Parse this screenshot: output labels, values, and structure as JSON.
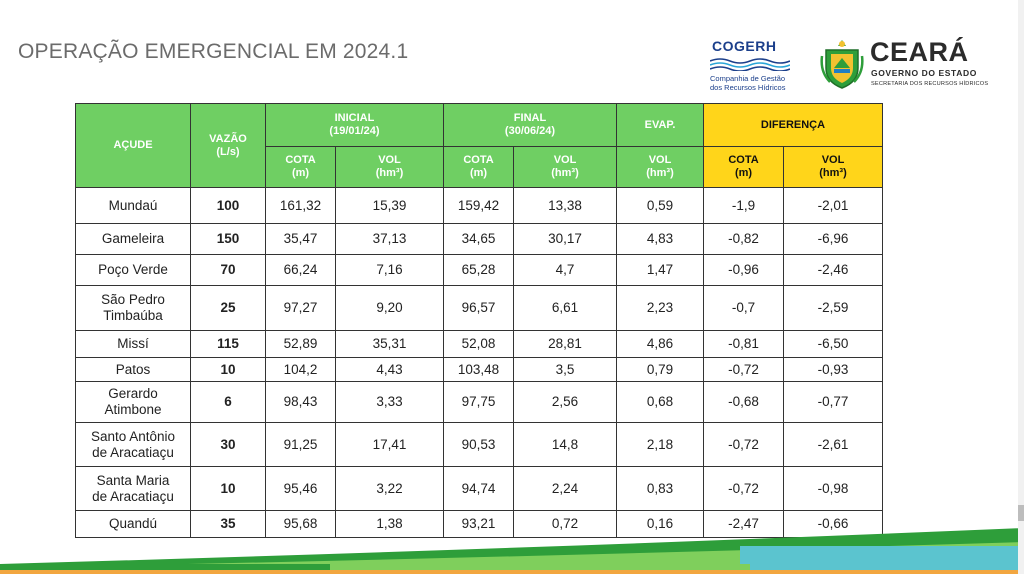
{
  "slide": {
    "title": "OPERAÇÃO EMERGENCIAL EM 2024.1"
  },
  "logos": {
    "cogerh": {
      "name": "COGERH",
      "subtitle_line1": "Companhia de Gestão",
      "subtitle_line2": "dos Recursos Hídricos"
    },
    "ceara": {
      "name": "CEARÁ",
      "gov": "GOVERNO DO ESTADO",
      "secretaria": "SECRETARIA DOS RECURSOS HÍDRICOS"
    }
  },
  "table": {
    "headers": {
      "acude": "AÇUDE",
      "vazao": "VAZÃO",
      "vazao_unit": "(L/s)",
      "inicial": "INICIAL",
      "inicial_date": "(19/01/24)",
      "final": "FINAL",
      "final_date": "(30/06/24)",
      "evap": "EVAP.",
      "diferenca": "DIFERENÇA",
      "cota": "COTA",
      "cota_unit": "(m)",
      "vol": "VOL",
      "vol_unit": "(hm³)"
    },
    "rows": [
      {
        "acude": [
          "Mundaú"
        ],
        "vazao": "100",
        "ini_cota": "161,32",
        "ini_vol": "15,39",
        "fin_cota": "159,42",
        "fin_vol": "13,38",
        "evap_vol": "0,59",
        "dif_cota": "-1,9",
        "dif_vol": "-2,01"
      },
      {
        "acude": [
          "Gameleira"
        ],
        "vazao": "150",
        "ini_cota": "35,47",
        "ini_vol": "37,13",
        "fin_cota": "34,65",
        "fin_vol": "30,17",
        "evap_vol": "4,83",
        "dif_cota": "-0,82",
        "dif_vol": "-6,96"
      },
      {
        "acude": [
          "Poço Verde"
        ],
        "vazao": "70",
        "ini_cota": "66,24",
        "ini_vol": "7,16",
        "fin_cota": "65,28",
        "fin_vol": "4,7",
        "evap_vol": "1,47",
        "dif_cota": "-0,96",
        "dif_vol": "-2,46"
      },
      {
        "acude": [
          "São Pedro",
          "Timbaúba"
        ],
        "vazao": "25",
        "ini_cota": "97,27",
        "ini_vol": "9,20",
        "fin_cota": "96,57",
        "fin_vol": "6,61",
        "evap_vol": "2,23",
        "dif_cota": "-0,7",
        "dif_vol": "-2,59"
      },
      {
        "acude": [
          "Missí"
        ],
        "vazao": "115",
        "ini_cota": "52,89",
        "ini_vol": "35,31",
        "fin_cota": "52,08",
        "fin_vol": "28,81",
        "evap_vol": "4,86",
        "dif_cota": "-0,81",
        "dif_vol": "-6,50"
      },
      {
        "acude": [
          "Patos"
        ],
        "vazao": "10",
        "ini_cota": "104,2",
        "ini_vol": "4,43",
        "fin_cota": "103,48",
        "fin_vol": "3,5",
        "evap_vol": "0,79",
        "dif_cota": "-0,72",
        "dif_vol": "-0,93"
      },
      {
        "acude": [
          "Gerardo",
          "Atimbone"
        ],
        "vazao": "6",
        "ini_cota": "98,43",
        "ini_vol": "3,33",
        "fin_cota": "97,75",
        "fin_vol": "2,56",
        "evap_vol": "0,68",
        "dif_cota": "-0,68",
        "dif_vol": "-0,77"
      },
      {
        "acude": [
          "Santo Antônio",
          "de Aracatiaçu"
        ],
        "vazao": "30",
        "ini_cota": "91,25",
        "ini_vol": "17,41",
        "fin_cota": "90,53",
        "fin_vol": "14,8",
        "evap_vol": "2,18",
        "dif_cota": "-0,72",
        "dif_vol": "-2,61"
      },
      {
        "acude": [
          "Santa Maria",
          "de Aracatiaçu"
        ],
        "vazao": "10",
        "ini_cota": "95,46",
        "ini_vol": "3,22",
        "fin_cota": "94,74",
        "fin_vol": "2,24",
        "evap_vol": "0,83",
        "dif_cota": "-0,72",
        "dif_vol": "-0,98"
      },
      {
        "acude": [
          "Quandú"
        ],
        "vazao": "35",
        "ini_cota": "95,68",
        "ini_vol": "1,38",
        "fin_cota": "93,21",
        "fin_vol": "0,72",
        "evap_vol": "0,16",
        "dif_cota": "-2,47",
        "dif_vol": "-0,66"
      }
    ]
  },
  "colors": {
    "header_green": "#6fcf63",
    "header_yellow": "#ffd51a",
    "stripe_green": "#2e9e3a",
    "stripe_teal": "#5bc4cf",
    "stripe_orange": "#f2a640"
  }
}
